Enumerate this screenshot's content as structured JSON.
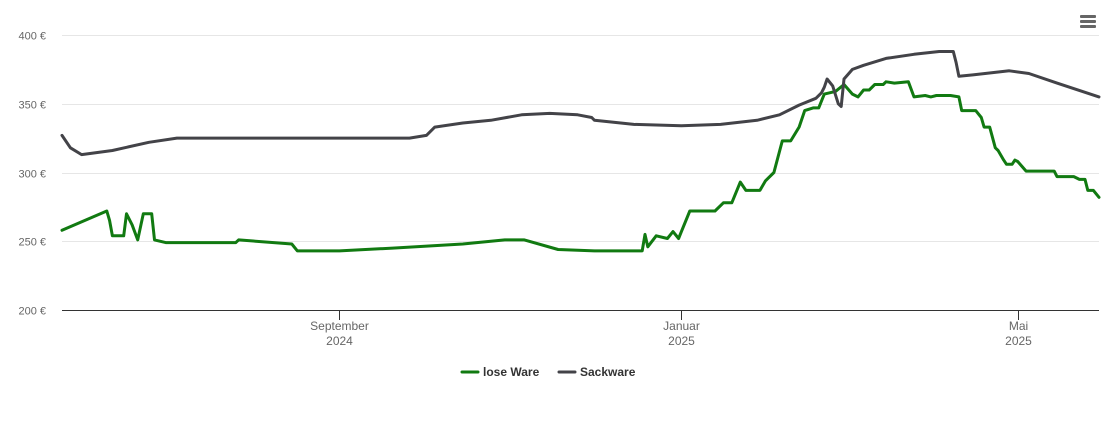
{
  "menu": {
    "icon": "hamburger-menu-icon"
  },
  "chart_data": {
    "type": "line",
    "title": "",
    "xlabel": "",
    "ylabel": "",
    "ylim": [
      200,
      400
    ],
    "yticks": [
      200,
      250,
      300,
      350,
      400
    ],
    "ytick_labels": [
      "200 €",
      "250 €",
      "300 €",
      "350 €",
      "400 €"
    ],
    "xlim": [
      "2024-05-25",
      "2025-05-30"
    ],
    "xticks": [
      {
        "date": "2024-09-01",
        "month": "September",
        "year": "2024"
      },
      {
        "date": "2025-01-01",
        "month": "Januar",
        "year": "2025"
      },
      {
        "date": "2025-05-01",
        "month": "Mai",
        "year": "2025"
      }
    ],
    "grid": "horizontal",
    "legend_position": "bottom",
    "series": [
      {
        "name": "lose Ware",
        "color": "#117a11",
        "points": [
          [
            "2024-05-25",
            258
          ],
          [
            "2024-06-10",
            272
          ],
          [
            "2024-06-11",
            265
          ],
          [
            "2024-06-12",
            254
          ],
          [
            "2024-06-14",
            254
          ],
          [
            "2024-06-16",
            254
          ],
          [
            "2024-06-17",
            270
          ],
          [
            "2024-06-19",
            262
          ],
          [
            "2024-06-21",
            251
          ],
          [
            "2024-06-23",
            270
          ],
          [
            "2024-06-26",
            270
          ],
          [
            "2024-06-27",
            251
          ],
          [
            "2024-07-01",
            249
          ],
          [
            "2024-07-26",
            249
          ],
          [
            "2024-07-27",
            251
          ],
          [
            "2024-08-15",
            248
          ],
          [
            "2024-08-17",
            243
          ],
          [
            "2024-09-01",
            243
          ],
          [
            "2024-09-20",
            245
          ],
          [
            "2024-10-15",
            248
          ],
          [
            "2024-10-30",
            251
          ],
          [
            "2024-11-06",
            251
          ],
          [
            "2024-11-18",
            244
          ],
          [
            "2024-12-01",
            243
          ],
          [
            "2024-12-18",
            243
          ],
          [
            "2024-12-19",
            255
          ],
          [
            "2024-12-20",
            246
          ],
          [
            "2024-12-23",
            254
          ],
          [
            "2024-12-27",
            252
          ],
          [
            "2024-12-29",
            257
          ],
          [
            "2024-12-31",
            252
          ],
          [
            "2025-01-01",
            257
          ],
          [
            "2025-01-04",
            272
          ],
          [
            "2025-01-13",
            272
          ],
          [
            "2025-01-16",
            278
          ],
          [
            "2025-01-19",
            278
          ],
          [
            "2025-01-22",
            293
          ],
          [
            "2025-01-24",
            287
          ],
          [
            "2025-01-29",
            287
          ],
          [
            "2025-01-31",
            294
          ],
          [
            "2025-02-03",
            300
          ],
          [
            "2025-02-06",
            323
          ],
          [
            "2025-02-09",
            323
          ],
          [
            "2025-02-12",
            333
          ],
          [
            "2025-02-14",
            345
          ],
          [
            "2025-02-17",
            347
          ],
          [
            "2025-02-19",
            347
          ],
          [
            "2025-02-21",
            357
          ],
          [
            "2025-02-25",
            359
          ],
          [
            "2025-02-28",
            364
          ],
          [
            "2025-03-03",
            357
          ],
          [
            "2025-03-05",
            355
          ],
          [
            "2025-03-07",
            360
          ],
          [
            "2025-03-09",
            360
          ],
          [
            "2025-03-11",
            364
          ],
          [
            "2025-03-14",
            364
          ],
          [
            "2025-03-15",
            366
          ],
          [
            "2025-03-18",
            365
          ],
          [
            "2025-03-23",
            366
          ],
          [
            "2025-03-25",
            355
          ],
          [
            "2025-03-29",
            356
          ],
          [
            "2025-03-31",
            355
          ],
          [
            "2025-04-02",
            356
          ],
          [
            "2025-04-07",
            356
          ],
          [
            "2025-04-10",
            355
          ],
          [
            "2025-04-11",
            345
          ],
          [
            "2025-04-16",
            345
          ],
          [
            "2025-04-18",
            340
          ],
          [
            "2025-04-19",
            333
          ],
          [
            "2025-04-21",
            333
          ],
          [
            "2025-04-23",
            318
          ],
          [
            "2025-04-24",
            316
          ],
          [
            "2025-04-26",
            309
          ],
          [
            "2025-04-27",
            306
          ],
          [
            "2025-04-29",
            306
          ],
          [
            "2025-04-30",
            309
          ],
          [
            "2025-05-01",
            308
          ],
          [
            "2025-05-04",
            301
          ],
          [
            "2025-05-14",
            301
          ],
          [
            "2025-05-15",
            297
          ],
          [
            "2025-05-21",
            297
          ],
          [
            "2025-05-22",
            296
          ],
          [
            "2025-05-23",
            295
          ],
          [
            "2025-05-25",
            295
          ],
          [
            "2025-05-26",
            287
          ],
          [
            "2025-05-28",
            287
          ],
          [
            "2025-05-30",
            282
          ]
        ]
      },
      {
        "name": "Sackware",
        "color": "#434348",
        "points": [
          [
            "2024-05-25",
            327
          ],
          [
            "2024-05-28",
            318
          ],
          [
            "2024-06-01",
            313
          ],
          [
            "2024-06-12",
            316
          ],
          [
            "2024-06-25",
            322
          ],
          [
            "2024-07-05",
            325
          ],
          [
            "2024-07-30",
            325
          ],
          [
            "2024-09-15",
            325
          ],
          [
            "2024-09-26",
            325
          ],
          [
            "2024-10-02",
            327
          ],
          [
            "2024-10-05",
            333
          ],
          [
            "2024-10-15",
            336
          ],
          [
            "2024-10-25",
            338
          ],
          [
            "2024-11-05",
            342
          ],
          [
            "2024-11-15",
            343
          ],
          [
            "2024-11-25",
            342
          ],
          [
            "2024-11-30",
            340
          ],
          [
            "2024-12-01",
            338
          ],
          [
            "2024-12-15",
            335
          ],
          [
            "2025-01-01",
            334
          ],
          [
            "2025-01-15",
            335
          ],
          [
            "2025-01-28",
            338
          ],
          [
            "2025-02-05",
            342
          ],
          [
            "2025-02-12",
            349
          ],
          [
            "2025-02-18",
            354
          ],
          [
            "2025-02-20",
            358
          ],
          [
            "2025-02-21",
            362
          ],
          [
            "2025-02-22",
            368
          ],
          [
            "2025-02-24",
            363
          ],
          [
            "2025-02-26",
            350
          ],
          [
            "2025-02-27",
            348
          ],
          [
            "2025-02-28",
            368
          ],
          [
            "2025-03-03",
            375
          ],
          [
            "2025-03-07",
            378
          ],
          [
            "2025-03-15",
            383
          ],
          [
            "2025-03-25",
            386
          ],
          [
            "2025-04-03",
            388
          ],
          [
            "2025-04-08",
            388
          ],
          [
            "2025-04-09",
            380
          ],
          [
            "2025-04-10",
            370
          ],
          [
            "2025-04-15",
            371
          ],
          [
            "2025-04-28",
            374
          ],
          [
            "2025-05-05",
            372
          ],
          [
            "2025-05-15",
            365
          ],
          [
            "2025-05-30",
            355
          ]
        ]
      }
    ]
  }
}
